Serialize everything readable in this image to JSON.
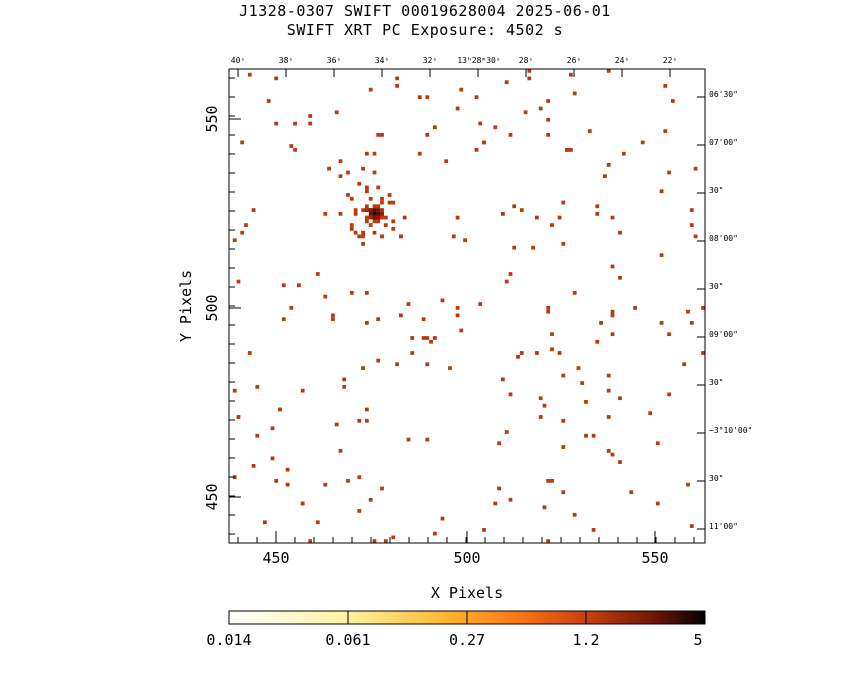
{
  "header": {
    "title_line1": "J1328-0307 SWIFT 00019628004 2025-06-01",
    "title_line2": "SWIFT XRT PC Exposure:       4502  s"
  },
  "axes": {
    "xlabel": "X Pixels",
    "ylabel": "Y Pixels",
    "x_range": [
      436,
      562
    ],
    "y_range": [
      437,
      563
    ],
    "x_ticks": [
      "450",
      "500",
      "550"
    ],
    "y_ticks": [
      "450",
      "500",
      "550"
    ],
    "ra_ticks": [
      "40ˢ",
      "38ˢ",
      "36ˢ",
      "34ˢ",
      "32ˢ",
      "13ʰ28ᵐ30ˢ",
      "28ˢ",
      "26ˢ",
      "24ˢ",
      "22ˢ"
    ],
    "dec_ticks": [
      "06'30\"",
      "07'00\"",
      "30\"",
      "08'00\"",
      "30\"",
      "09'00\"",
      "30\"",
      "−3°10'00\"",
      "30\"",
      "11'00\""
    ]
  },
  "colorbar": {
    "labels": [
      "0.014",
      "0.061",
      "0.27",
      "1.2",
      "5"
    ],
    "colors": [
      "#ffffff",
      "#fff7b0",
      "#ffd24a",
      "#ff8c1a",
      "#d9480f",
      "#8b1a08",
      "#000000"
    ]
  },
  "image": {
    "source": {
      "x": 474,
      "y": 524
    },
    "background_color": "#b83a10"
  }
}
